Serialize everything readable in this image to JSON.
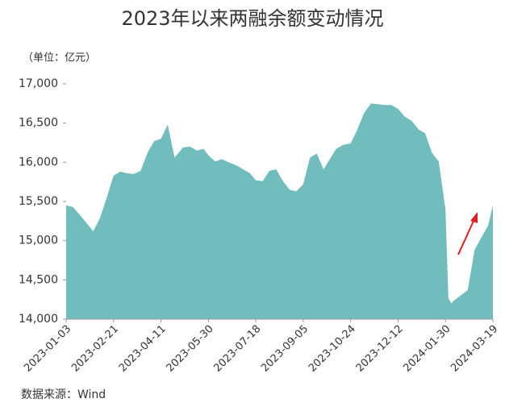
{
  "chart_data": {
    "type": "area",
    "title": "2023年以来两融余额变动情况",
    "y_label": "（单位：亿元）",
    "source": "数据来源：Wind",
    "watermark": "Wind",
    "color": "#71bdbd",
    "x": [
      "2023-01-03",
      "2023-01-10",
      "2023-01-17",
      "2023-01-31",
      "2023-02-07",
      "2023-02-14",
      "2023-02-21",
      "2023-02-28",
      "2023-03-07",
      "2023-03-14",
      "2023-03-21",
      "2023-03-28",
      "2023-04-04",
      "2023-04-11",
      "2023-04-18",
      "2023-04-25",
      "2023-05-04",
      "2023-05-11",
      "2023-05-18",
      "2023-05-25",
      "2023-05-30",
      "2023-06-06",
      "2023-06-13",
      "2023-06-20",
      "2023-06-28",
      "2023-07-05",
      "2023-07-12",
      "2023-07-18",
      "2023-07-25",
      "2023-08-01",
      "2023-08-08",
      "2023-08-15",
      "2023-08-22",
      "2023-08-29",
      "2023-09-05",
      "2023-09-12",
      "2023-09-19",
      "2023-09-26",
      "2023-10-09",
      "2023-10-16",
      "2023-10-24",
      "2023-10-31",
      "2023-11-07",
      "2023-11-14",
      "2023-11-21",
      "2023-11-28",
      "2023-12-05",
      "2023-12-12",
      "2023-12-19",
      "2023-12-26",
      "2024-01-02",
      "2024-01-09",
      "2024-01-16",
      "2024-01-23",
      "2024-01-30",
      "2024-02-02",
      "2024-02-05",
      "2024-02-08",
      "2024-02-22",
      "2024-02-29",
      "2024-03-07",
      "2024-03-14",
      "2024-03-19"
    ],
    "values": [
      15450,
      15430,
      15330,
      15120,
      15290,
      15550,
      15830,
      15880,
      15860,
      15850,
      15890,
      16120,
      16270,
      16300,
      16480,
      16060,
      16190,
      16200,
      16150,
      16170,
      16090,
      16010,
      16040,
      16000,
      15960,
      15910,
      15860,
      15770,
      15760,
      15890,
      15910,
      15760,
      15650,
      15630,
      15720,
      16060,
      16110,
      15910,
      16170,
      16220,
      16240,
      16420,
      16630,
      16750,
      16740,
      16730,
      16730,
      16680,
      16580,
      16530,
      16420,
      16370,
      16120,
      16010,
      15400,
      14270,
      14200,
      14240,
      14370,
      14880,
      15040,
      15190,
      15450
    ],
    "xlim": [
      "2023-01-03",
      "2024-03-19"
    ],
    "xticks": [
      "2023-01-03",
      "2023-02-21",
      "2023-04-11",
      "2023-05-30",
      "2023-07-18",
      "2023-09-05",
      "2023-10-24",
      "2023-12-12",
      "2024-01-30",
      "2024-03-19"
    ],
    "ylim": [
      14000,
      17000
    ],
    "yticks": [
      {
        "value": 14000,
        "label": "14,000"
      },
      {
        "value": 14500,
        "label": "14,500"
      },
      {
        "value": 15000,
        "label": "15,000"
      },
      {
        "value": 15500,
        "label": "15,500"
      },
      {
        "value": 16000,
        "label": "16,000"
      },
      {
        "value": 16500,
        "label": "16,500"
      },
      {
        "value": 17000,
        "label": "17,000"
      }
    ]
  }
}
